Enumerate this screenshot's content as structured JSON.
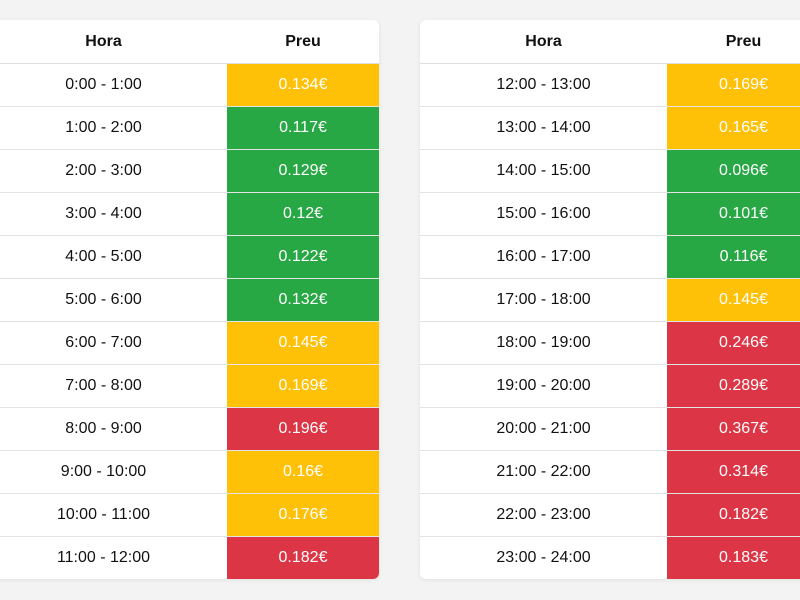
{
  "headers": {
    "hour": "Hora",
    "price": "Preu"
  },
  "colors": {
    "low": "#28a745",
    "mid": "#ffc107",
    "high": "#dc3545"
  },
  "tables": [
    {
      "rows": [
        {
          "hour": "0:00 - 1:00",
          "price": "0.134€",
          "level": "mid"
        },
        {
          "hour": "1:00 - 2:00",
          "price": "0.117€",
          "level": "low"
        },
        {
          "hour": "2:00 - 3:00",
          "price": "0.129€",
          "level": "low"
        },
        {
          "hour": "3:00 - 4:00",
          "price": "0.12€",
          "level": "low"
        },
        {
          "hour": "4:00 - 5:00",
          "price": "0.122€",
          "level": "low"
        },
        {
          "hour": "5:00 - 6:00",
          "price": "0.132€",
          "level": "low"
        },
        {
          "hour": "6:00 - 7:00",
          "price": "0.145€",
          "level": "mid"
        },
        {
          "hour": "7:00 - 8:00",
          "price": "0.169€",
          "level": "mid"
        },
        {
          "hour": "8:00 - 9:00",
          "price": "0.196€",
          "level": "high"
        },
        {
          "hour": "9:00 - 10:00",
          "price": "0.16€",
          "level": "mid"
        },
        {
          "hour": "10:00 - 11:00",
          "price": "0.176€",
          "level": "mid"
        },
        {
          "hour": "11:00 - 12:00",
          "price": "0.182€",
          "level": "high"
        }
      ]
    },
    {
      "rows": [
        {
          "hour": "12:00 - 13:00",
          "price": "0.169€",
          "level": "mid"
        },
        {
          "hour": "13:00 - 14:00",
          "price": "0.165€",
          "level": "mid"
        },
        {
          "hour": "14:00 - 15:00",
          "price": "0.096€",
          "level": "low"
        },
        {
          "hour": "15:00 - 16:00",
          "price": "0.101€",
          "level": "low"
        },
        {
          "hour": "16:00 - 17:00",
          "price": "0.116€",
          "level": "low"
        },
        {
          "hour": "17:00 - 18:00",
          "price": "0.145€",
          "level": "mid"
        },
        {
          "hour": "18:00 - 19:00",
          "price": "0.246€",
          "level": "high"
        },
        {
          "hour": "19:00 - 20:00",
          "price": "0.289€",
          "level": "high"
        },
        {
          "hour": "20:00 - 21:00",
          "price": "0.367€",
          "level": "high"
        },
        {
          "hour": "21:00 - 22:00",
          "price": "0.314€",
          "level": "high"
        },
        {
          "hour": "22:00 - 23:00",
          "price": "0.182€",
          "level": "high"
        },
        {
          "hour": "23:00 - 24:00",
          "price": "0.183€",
          "level": "high"
        }
      ]
    }
  ]
}
